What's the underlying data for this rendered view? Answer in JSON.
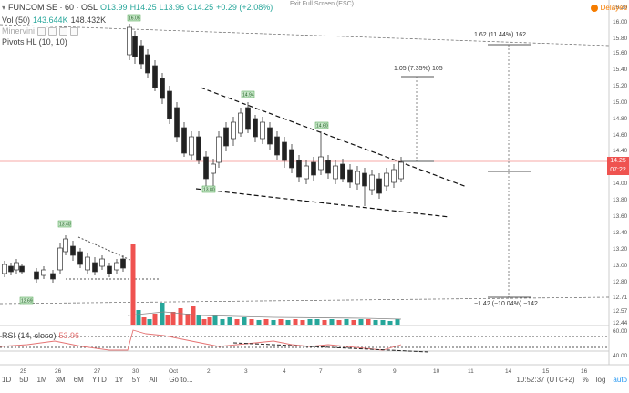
{
  "header": {
    "symbol": "FUNCOM SE · 60 · OSL",
    "ohlc_o": "O13.99",
    "ohlc_h": "H14.25",
    "ohlc_l": "L13.96",
    "ohlc_c": "C14.25",
    "change": "+0.29 (+2.08%)",
    "exit_fullscreen": "Exit Full Screen (ESC)",
    "delayed": "Delayed"
  },
  "indicators": {
    "vol_label": "Vol (50)",
    "vol_value1": "143.644K",
    "vol_value2": "148.432K",
    "minervini_label": "Minervini",
    "pivots_label": "Pivots HL (10, 10)",
    "rsi_label": "RSI (14, close)",
    "rsi_value": "53.96"
  },
  "price_axis": [
    "16.20",
    "16.00",
    "15.80",
    "15.60",
    "15.40",
    "15.20",
    "15.00",
    "14.80",
    "14.60",
    "14.40",
    "14.00",
    "13.80",
    "13.60",
    "13.40",
    "13.20",
    "13.00",
    "12.80",
    "12.71",
    "12.57",
    "12.44"
  ],
  "current_price": {
    "price": "14.25",
    "time": "07:22",
    "color": "#ef5350"
  },
  "rsi_axis": [
    "40.00",
    "60.00"
  ],
  "x_axis": [
    "25",
    "26",
    "27",
    "30",
    "Oct",
    "2",
    "3",
    "4",
    "7",
    "8",
    "9",
    "10",
    "11",
    "14",
    "15",
    "16"
  ],
  "pivot_labels": [
    "16.05",
    "14.94",
    "14.60",
    "13.80",
    "13.40",
    "12.69"
  ],
  "measurements": {
    "up_large": "1.62 (11.44%) 162",
    "up_small": "1.05 (7.35%) 105",
    "down": "−1.42 (−10.04%) −142"
  },
  "bottom": {
    "ranges": [
      "1D",
      "5D",
      "1M",
      "3M",
      "6M",
      "YTD",
      "1Y",
      "5Y",
      "All"
    ],
    "goto": "Go to...",
    "time": "10:52:37 (UTC+2)",
    "pct": "%",
    "log": "log",
    "auto": "auto"
  },
  "colors": {
    "up_volume": "#26a69a",
    "down_volume": "#ef5350",
    "accent": "#f57c00",
    "rsi": "#e57373"
  },
  "chart_data": {
    "type": "candlestick",
    "title": "FUNCOM SE · 60 · OSL",
    "ylim": [
      12.4,
      16.2
    ],
    "x_categories": [
      "25",
      "26",
      "27",
      "30",
      "Oct",
      "2",
      "3",
      "4",
      "7",
      "8",
      "9",
      "10",
      "11",
      "14",
      "15",
      "16"
    ],
    "price_levels_marked": [
      16.05,
      14.94,
      14.6,
      13.8,
      13.4,
      12.69
    ],
    "last_price": 14.25,
    "rsi_last": 53.96,
    "measurements": [
      {
        "label": "1.62 (11.44%) 162",
        "change": 1.62,
        "pct": 11.44
      },
      {
        "label": "1.05 (7.35%) 105",
        "change": 1.05,
        "pct": 7.35
      },
      {
        "label": "−1.42 (−10.04%) −142",
        "change": -1.42,
        "pct": -10.04
      }
    ]
  }
}
